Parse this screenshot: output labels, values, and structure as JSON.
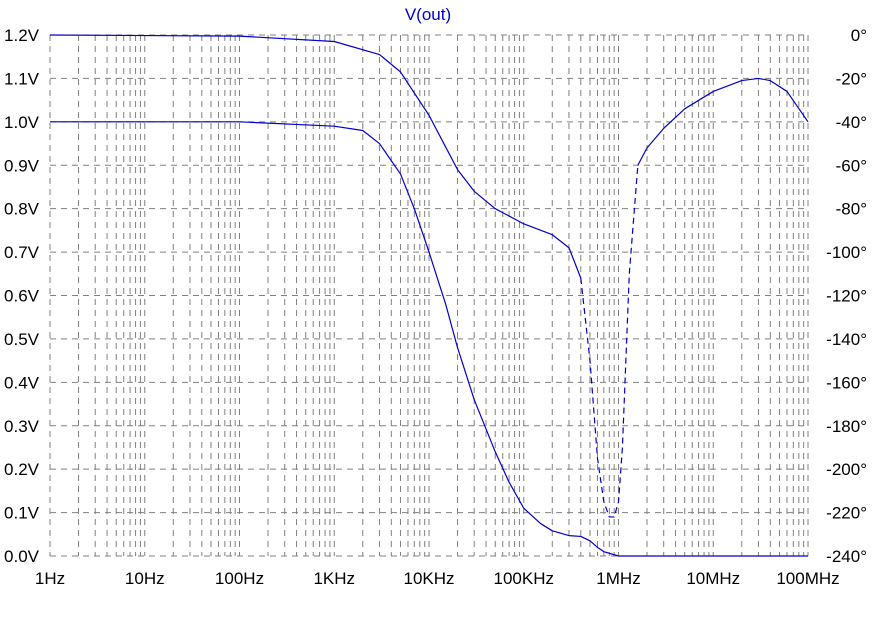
{
  "chart_data": {
    "type": "line",
    "title": "V(out)",
    "x_scale": "log",
    "xlim": [
      1,
      100000000
    ],
    "x_ticks": [
      {
        "value": 1,
        "label": "1Hz"
      },
      {
        "value": 10,
        "label": "10Hz"
      },
      {
        "value": 100,
        "label": "100Hz"
      },
      {
        "value": 1000,
        "label": "1KHz"
      },
      {
        "value": 10000,
        "label": "10KHz"
      },
      {
        "value": 100000,
        "label": "100KHz"
      },
      {
        "value": 1000000,
        "label": "1MHz"
      },
      {
        "value": 10000000,
        "label": "10MHz"
      },
      {
        "value": 100000000,
        "label": "100MHz"
      }
    ],
    "ylim_left": [
      0,
      1.2
    ],
    "y_ticks_left": [
      {
        "value": 0.0,
        "label": "0.0V"
      },
      {
        "value": 0.1,
        "label": "0.1V"
      },
      {
        "value": 0.2,
        "label": "0.2V"
      },
      {
        "value": 0.3,
        "label": "0.3V"
      },
      {
        "value": 0.4,
        "label": "0.4V"
      },
      {
        "value": 0.5,
        "label": "0.5V"
      },
      {
        "value": 0.6,
        "label": "0.6V"
      },
      {
        "value": 0.7,
        "label": "0.7V"
      },
      {
        "value": 0.8,
        "label": "0.8V"
      },
      {
        "value": 0.9,
        "label": "0.9V"
      },
      {
        "value": 1.0,
        "label": "1.0V"
      },
      {
        "value": 1.1,
        "label": "1.1V"
      },
      {
        "value": 1.2,
        "label": "1.2V"
      }
    ],
    "ylim_right": [
      -240,
      0
    ],
    "y_ticks_right": [
      {
        "value": 0,
        "label": "0°"
      },
      {
        "value": -20,
        "label": "-20°"
      },
      {
        "value": -40,
        "label": "-40°"
      },
      {
        "value": -60,
        "label": "-60°"
      },
      {
        "value": -80,
        "label": "-80°"
      },
      {
        "value": -100,
        "label": "-100°"
      },
      {
        "value": -120,
        "label": "-120°"
      },
      {
        "value": -140,
        "label": "-140°"
      },
      {
        "value": -160,
        "label": "-160°"
      },
      {
        "value": -180,
        "label": "-180°"
      },
      {
        "value": -200,
        "label": "-200°"
      },
      {
        "value": -220,
        "label": "-220°"
      },
      {
        "value": -240,
        "label": "-240°"
      }
    ],
    "grid": true,
    "grid_style": "dashed",
    "series": [
      {
        "axis": "left",
        "line_style": "solid",
        "color": "#0000cc",
        "x": [
          1,
          100,
          1000,
          2000,
          3000,
          5000,
          7000,
          10000,
          15000,
          20000,
          30000,
          50000,
          70000,
          100000,
          150000,
          200000,
          300000,
          400000,
          500000,
          600000,
          700000,
          1000000,
          10000000,
          100000000
        ],
        "y": [
          1.0,
          1.0,
          0.99,
          0.98,
          0.95,
          0.88,
          0.8,
          0.7,
          0.58,
          0.48,
          0.36,
          0.24,
          0.17,
          0.11,
          0.075,
          0.058,
          0.047,
          0.045,
          0.035,
          0.02,
          0.01,
          0.0,
          0.0,
          0.0
        ]
      },
      {
        "axis": "right",
        "line_style": "solid",
        "color": "#0000cc",
        "x": [
          1,
          100,
          1000,
          3000,
          5000,
          10000,
          20000,
          30000,
          50000,
          100000,
          200000,
          300000,
          400000
        ],
        "y": [
          0,
          -0.5,
          -3,
          -9,
          -17,
          -37,
          -62,
          -72,
          -80,
          -87,
          -92,
          -98,
          -112
        ]
      },
      {
        "axis": "right",
        "line_style": "dashed",
        "color": "#0000cc",
        "x": [
          400000,
          500000,
          600000,
          700000,
          800000,
          900000,
          1000000,
          1100000,
          1300000,
          1600000
        ],
        "y": [
          -112,
          -150,
          -195,
          -215,
          -222,
          -222,
          -215,
          -190,
          -110,
          -60
        ]
      },
      {
        "axis": "right",
        "line_style": "solid",
        "color": "#0000cc",
        "x": [
          1600000,
          2000000,
          3000000,
          5000000,
          10000000,
          20000000,
          30000000,
          40000000,
          60000000,
          100000000
        ],
        "y": [
          -60,
          -52,
          -43,
          -34,
          -26,
          -21,
          -20,
          -21,
          -26,
          -40
        ]
      }
    ]
  }
}
